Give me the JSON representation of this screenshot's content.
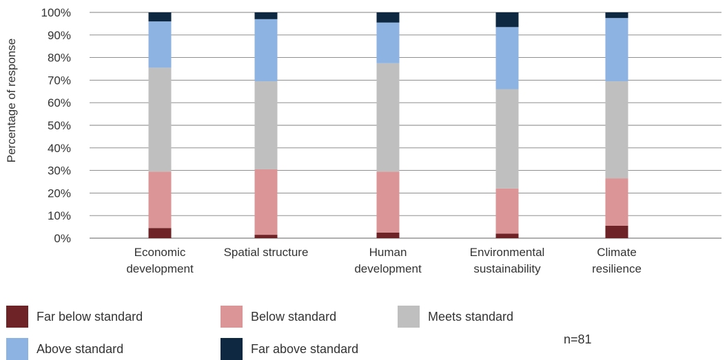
{
  "chart_data": {
    "type": "bar",
    "stacked": true,
    "normalized": true,
    "ylabel": "Percentage of response",
    "ylim": [
      0,
      100
    ],
    "y_ticks": [
      "0%",
      "10%",
      "20%",
      "30%",
      "40%",
      "50%",
      "60%",
      "70%",
      "80%",
      "90%",
      "100%"
    ],
    "categories": [
      [
        "Economic",
        "development"
      ],
      [
        "Spatial structure"
      ],
      [
        "Human",
        "development"
      ],
      [
        "Environmental",
        "sustainability"
      ],
      [
        "Climate",
        "resilience"
      ]
    ],
    "series": [
      {
        "name": "Far below standard",
        "color": "#6e2327",
        "values": [
          4.5,
          1.5,
          2.5,
          2.0,
          5.5
        ]
      },
      {
        "name": "Below standard",
        "color": "#dc9596",
        "values": [
          25.0,
          29.0,
          27.0,
          20.0,
          21.0
        ]
      },
      {
        "name": "Meets standard",
        "color": "#bfbfbf",
        "values": [
          46.0,
          39.0,
          48.0,
          44.0,
          43.0
        ]
      },
      {
        "name": "Above standard",
        "color": "#8db3e2",
        "values": [
          20.5,
          27.5,
          18.0,
          27.5,
          28.0
        ]
      },
      {
        "name": "Far above standard",
        "color": "#0e2841",
        "values": [
          4.0,
          3.0,
          4.5,
          6.5,
          2.5
        ]
      }
    ],
    "grid": true,
    "legend_position": "bottom"
  },
  "note": "n=81"
}
